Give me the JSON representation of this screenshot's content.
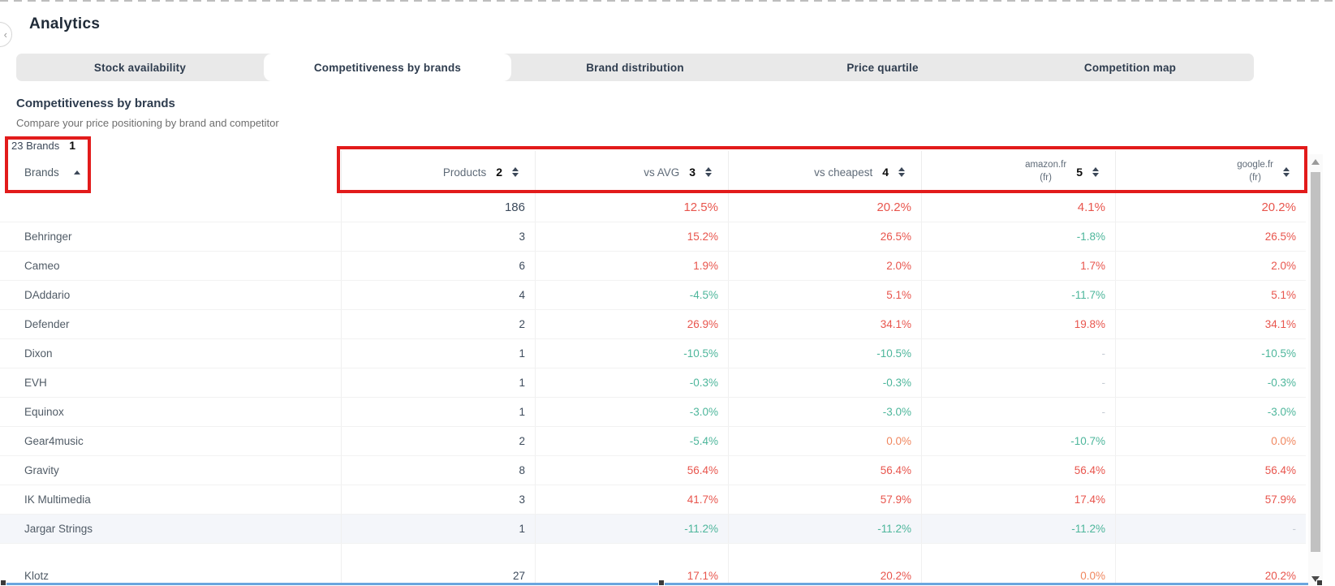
{
  "page": {
    "title": "Analytics"
  },
  "tabs": [
    {
      "label": "Stock availability",
      "active": false
    },
    {
      "label": "Competitiveness by brands",
      "active": true
    },
    {
      "label": "Brand distribution",
      "active": false
    },
    {
      "label": "Price quartile",
      "active": false
    },
    {
      "label": "Competition map",
      "active": false
    }
  ],
  "section": {
    "title": "Competitiveness by brands",
    "subtitle": "Compare your price positioning by brand and competitor",
    "brand_count": "23 Brands"
  },
  "annotations": {
    "n1": "1",
    "n2": "2",
    "n3": "3",
    "n4": "4",
    "n5": "5"
  },
  "table": {
    "brand_header": "Brands",
    "columns": [
      {
        "label": "Products",
        "line2": ""
      },
      {
        "label": "vs AVG",
        "line2": ""
      },
      {
        "label": "vs cheapest",
        "line2": ""
      },
      {
        "label": "amazon.fr",
        "line2": "(fr)"
      },
      {
        "label": "google.fr",
        "line2": "(fr)"
      }
    ],
    "rows": [
      {
        "brand": "",
        "products": "186",
        "vs_avg": "12.5%",
        "vs_cheapest": "20.2%",
        "amazon": "4.1%",
        "google": "20.2%",
        "totals": true
      },
      {
        "brand": "Behringer",
        "products": "3",
        "vs_avg": "15.2%",
        "vs_cheapest": "26.5%",
        "amazon": "-1.8%",
        "google": "26.5%"
      },
      {
        "brand": "Cameo",
        "products": "6",
        "vs_avg": "1.9%",
        "vs_cheapest": "2.0%",
        "amazon": "1.7%",
        "google": "2.0%"
      },
      {
        "brand": "DAddario",
        "products": "4",
        "vs_avg": "-4.5%",
        "vs_cheapest": "5.1%",
        "amazon": "-11.7%",
        "google": "5.1%"
      },
      {
        "brand": "Defender",
        "products": "2",
        "vs_avg": "26.9%",
        "vs_cheapest": "34.1%",
        "amazon": "19.8%",
        "google": "34.1%"
      },
      {
        "brand": "Dixon",
        "products": "1",
        "vs_avg": "-10.5%",
        "vs_cheapest": "-10.5%",
        "amazon": "-",
        "google": "-10.5%"
      },
      {
        "brand": "EVH",
        "products": "1",
        "vs_avg": "-0.3%",
        "vs_cheapest": "-0.3%",
        "amazon": "-",
        "google": "-0.3%"
      },
      {
        "brand": "Equinox",
        "products": "1",
        "vs_avg": "-3.0%",
        "vs_cheapest": "-3.0%",
        "amazon": "-",
        "google": "-3.0%"
      },
      {
        "brand": "Gear4music",
        "products": "2",
        "vs_avg": "-5.4%",
        "vs_cheapest": "0.0%",
        "amazon": "-10.7%",
        "google": "0.0%"
      },
      {
        "brand": "Gravity",
        "products": "8",
        "vs_avg": "56.4%",
        "vs_cheapest": "56.4%",
        "amazon": "56.4%",
        "google": "56.4%"
      },
      {
        "brand": "IK Multimedia",
        "products": "3",
        "vs_avg": "41.7%",
        "vs_cheapest": "57.9%",
        "amazon": "17.4%",
        "google": "57.9%"
      },
      {
        "brand": "Jargar Strings",
        "products": "1",
        "vs_avg": "-11.2%",
        "vs_cheapest": "-11.2%",
        "amazon": "-11.2%",
        "google": "-",
        "highlighted": true
      },
      {
        "brand": "Klotz",
        "products": "27",
        "vs_avg": "17.1%",
        "vs_cheapest": "20.2%",
        "amazon": "0.0%",
        "google": "20.2%",
        "partial": true
      }
    ]
  },
  "colors": {
    "positive": "#e8554d",
    "negative": "#4db69b",
    "zero": "#f0875f",
    "dash": "#c5ccd4",
    "annotation_red": "#e21b1b",
    "selection_blue": "#6aa6de"
  }
}
